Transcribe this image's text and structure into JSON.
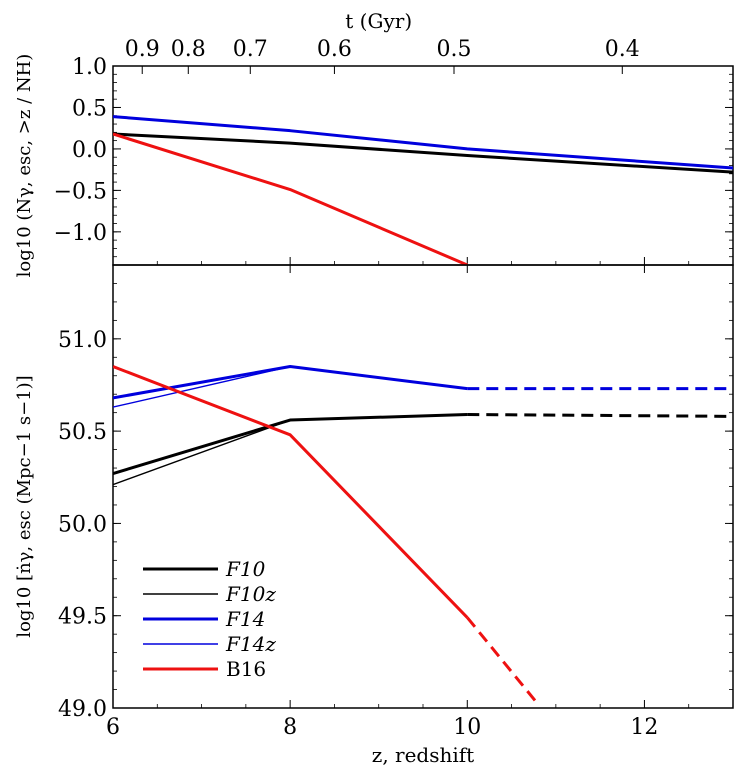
{
  "chart_data": [
    {
      "type": "line",
      "panel": "top",
      "top_axis": {
        "label": "t (Gyr)",
        "ticks": [
          {
            "z": 6.33,
            "label": "0.9"
          },
          {
            "z": 6.85,
            "label": "0.8"
          },
          {
            "z": 7.55,
            "label": "0.7"
          },
          {
            "z": 8.5,
            "label": "0.6"
          },
          {
            "z": 9.85,
            "label": "0.5"
          },
          {
            "z": 11.75,
            "label": "0.4"
          }
        ]
      },
      "ylabel": "log10 (Nγ, esc, >z / NH)",
      "ylim": [
        -1.4,
        1.0
      ],
      "xlim": [
        6,
        13
      ],
      "yticks": [
        {
          "value": 1.0,
          "label": "1.0"
        },
        {
          "value": 0.5,
          "label": "0.5"
        },
        {
          "value": 0.0,
          "label": "0.0"
        },
        {
          "value": -0.5,
          "label": "−0.5"
        },
        {
          "value": -1.0,
          "label": "−1.0"
        }
      ],
      "series": [
        {
          "name": "F10",
          "color": "#000000",
          "weight": "thick",
          "dashed": false,
          "points": [
            [
              6,
              0.18
            ],
            [
              8,
              0.07
            ],
            [
              10,
              -0.08
            ],
            [
              13,
              -0.28
            ]
          ]
        },
        {
          "name": "F14",
          "color": "#0000dd",
          "weight": "thick",
          "dashed": false,
          "points": [
            [
              6,
              0.39
            ],
            [
              8,
              0.22
            ],
            [
              10,
              0.0
            ],
            [
              13,
              -0.23
            ]
          ]
        },
        {
          "name": "B16",
          "color": "#ee1111",
          "weight": "thick",
          "dashed": false,
          "points": [
            [
              6,
              0.18
            ],
            [
              8,
              -0.49
            ],
            [
              10,
              -1.4
            ]
          ]
        }
      ]
    },
    {
      "type": "line",
      "panel": "bottom",
      "xlabel": "z, redshift",
      "ylabel": "log10 [ṅγ, esc (Mpc−1 s−1)]",
      "xlim": [
        6,
        13
      ],
      "ylim": [
        49.0,
        51.4
      ],
      "xticks": [
        {
          "value": 6,
          "label": "6"
        },
        {
          "value": 8,
          "label": "8"
        },
        {
          "value": 10,
          "label": "10"
        },
        {
          "value": 12,
          "label": "12"
        }
      ],
      "yticks": [
        {
          "value": 49.0,
          "label": "49.0"
        },
        {
          "value": 49.5,
          "label": "49.5"
        },
        {
          "value": 50.0,
          "label": "50.0"
        },
        {
          "value": 50.5,
          "label": "50.5"
        },
        {
          "value": 51.0,
          "label": "51.0"
        }
      ],
      "series": [
        {
          "name": "F10",
          "color": "#000000",
          "weight": "thick",
          "dashed": false,
          "points": [
            [
              6,
              50.27
            ],
            [
              8,
              50.56
            ],
            [
              10,
              50.59
            ]
          ]
        },
        {
          "name": "F10",
          "color": "#000000",
          "weight": "thick",
          "dashed": true,
          "points": [
            [
              10,
              50.59
            ],
            [
              13,
              50.58
            ]
          ]
        },
        {
          "name": "F10z",
          "color": "#000000",
          "weight": "thin",
          "dashed": false,
          "points": [
            [
              6,
              50.21
            ],
            [
              8,
              50.56
            ]
          ]
        },
        {
          "name": "F14",
          "color": "#0000dd",
          "weight": "thick",
          "dashed": false,
          "points": [
            [
              6,
              50.68
            ],
            [
              8,
              50.85
            ],
            [
              10,
              50.73
            ]
          ]
        },
        {
          "name": "F14",
          "color": "#0000dd",
          "weight": "thick",
          "dashed": true,
          "points": [
            [
              10,
              50.73
            ],
            [
              13,
              50.73
            ]
          ]
        },
        {
          "name": "F14z",
          "color": "#0000dd",
          "weight": "thin",
          "dashed": false,
          "points": [
            [
              6,
              50.63
            ],
            [
              8,
              50.85
            ]
          ]
        },
        {
          "name": "B16",
          "color": "#ee1111",
          "weight": "thick",
          "dashed": false,
          "points": [
            [
              6,
              50.85
            ],
            [
              8,
              50.48
            ],
            [
              10,
              49.49
            ]
          ]
        },
        {
          "name": "B16",
          "color": "#ee1111",
          "weight": "thick",
          "dashed": true,
          "points": [
            [
              10,
              49.49
            ],
            [
              10.8,
              49.02
            ]
          ]
        }
      ],
      "legend": {
        "placement": "lower-left",
        "entries": [
          {
            "label": "F10",
            "color": "#000000",
            "weight": "thick"
          },
          {
            "label": "F10z",
            "color": "#000000",
            "weight": "thin"
          },
          {
            "label": "F14",
            "color": "#0000dd",
            "weight": "thick"
          },
          {
            "label": "F14z",
            "color": "#0000dd",
            "weight": "thin"
          },
          {
            "label": "B16",
            "color": "#ee1111",
            "weight": "thick"
          }
        ]
      }
    }
  ]
}
